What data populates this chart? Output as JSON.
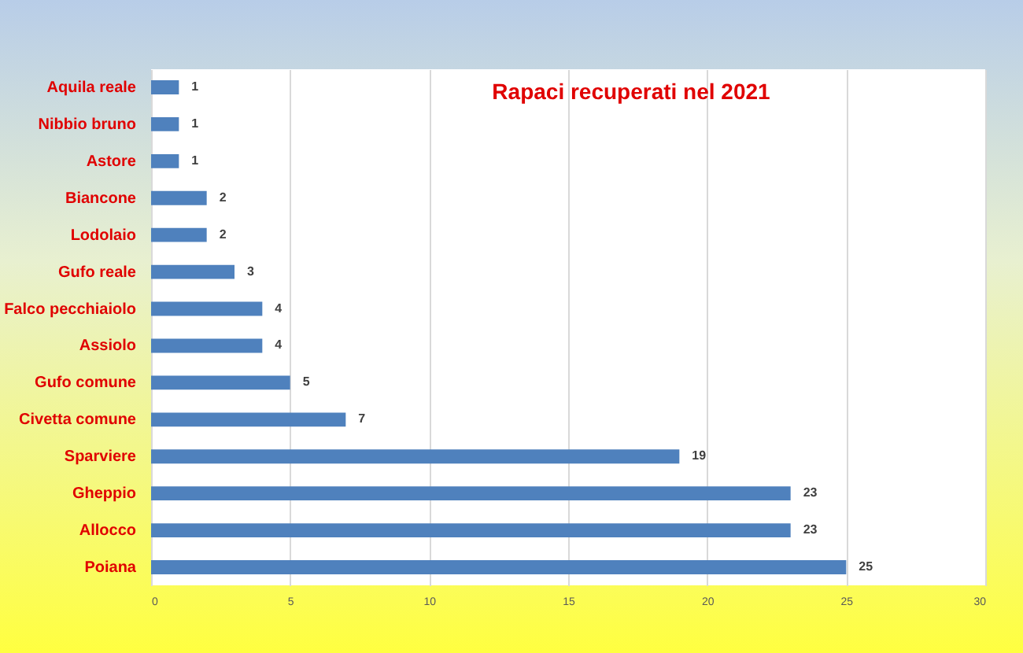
{
  "chart_data": {
    "type": "bar",
    "orientation": "horizontal",
    "title": "Rapaci recuperati  nel 2021",
    "categories": [
      "Aquila reale",
      "Nibbio bruno",
      "Astore",
      "Biancone",
      "Lodolaio",
      "Gufo reale",
      "Falco pecchiaiolo",
      "Assiolo",
      "Gufo comune",
      "Civetta comune",
      "Sparviere",
      "Gheppio",
      "Allocco",
      "Poiana"
    ],
    "values": [
      1,
      1,
      1,
      2,
      2,
      3,
      4,
      4,
      5,
      7,
      19,
      23,
      23,
      25
    ],
    "color": "#4f81bd",
    "xlim": [
      0,
      30
    ],
    "xticks": [
      0,
      5,
      10,
      15,
      20,
      25,
      30
    ],
    "grid": "x",
    "data_labels": true
  }
}
